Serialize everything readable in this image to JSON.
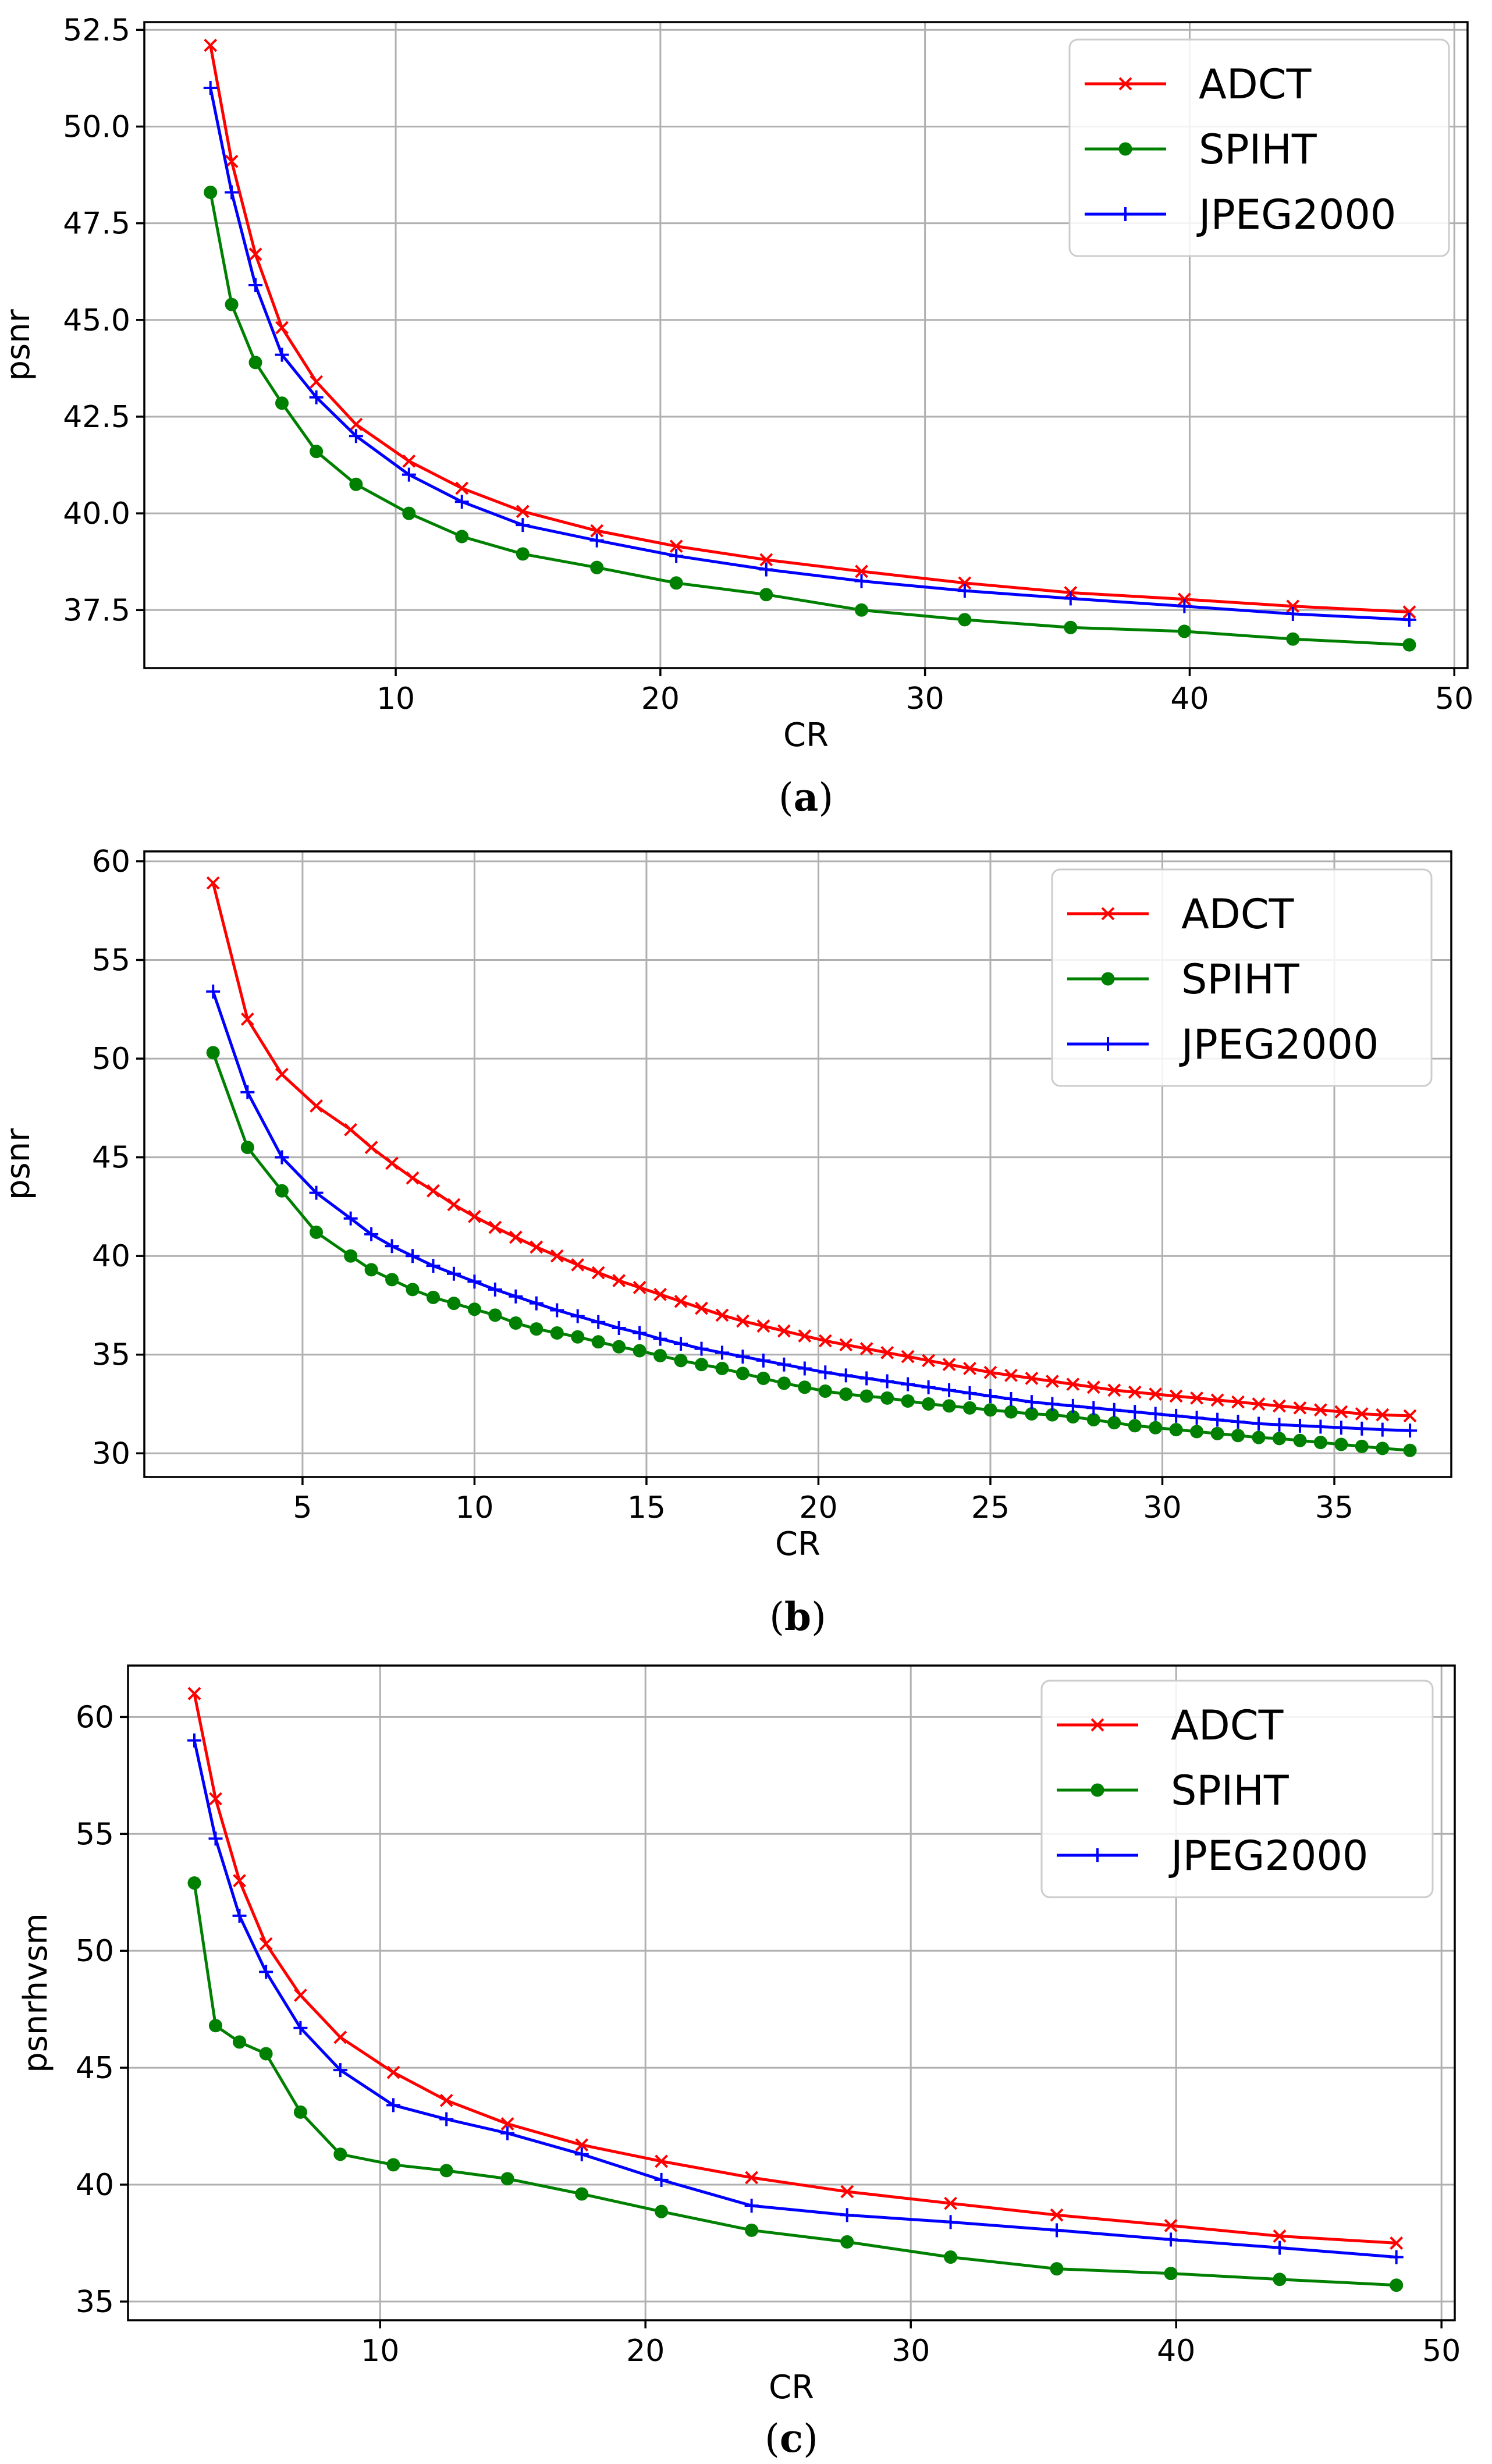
{
  "colors": {
    "ADCT": "#ff0000",
    "SPIHT": "#008000",
    "JPEG2000": "#0000ff"
  },
  "chart_data": [
    {
      "type": "line",
      "caption": "(a)",
      "caption_letter": "a",
      "xlabel": "CR",
      "ylabel": "psnr",
      "xlim": [
        0.5,
        50.5
      ],
      "ylim": [
        36.0,
        52.7
      ],
      "xticks": [
        10,
        20,
        30,
        40,
        50
      ],
      "yticks": [
        37.5,
        40.0,
        42.5,
        45.0,
        47.5,
        50.0,
        52.5
      ],
      "ytick_labels": [
        "37.5",
        "40.0",
        "42.5",
        "45.0",
        "47.5",
        "50.0",
        "52.5"
      ],
      "legend_position": "top-right",
      "series": [
        {
          "name": "ADCT",
          "marker": "x",
          "x": [
            3.0,
            3.8,
            4.7,
            5.7,
            7.0,
            8.5,
            10.5,
            12.5,
            14.8,
            17.6,
            20.6,
            24.0,
            27.6,
            31.5,
            35.5,
            39.8,
            43.9,
            48.3
          ],
          "y": [
            52.1,
            49.1,
            46.7,
            44.8,
            43.4,
            42.3,
            41.35,
            40.65,
            40.05,
            39.55,
            39.15,
            38.8,
            38.5,
            38.2,
            37.95,
            37.78,
            37.6,
            37.45
          ]
        },
        {
          "name": "SPIHT",
          "marker": "o",
          "x": [
            3.0,
            3.8,
            4.7,
            5.7,
            7.0,
            8.5,
            10.5,
            12.5,
            14.8,
            17.6,
            20.6,
            24.0,
            27.6,
            31.5,
            35.5,
            39.8,
            43.9,
            48.3
          ],
          "y": [
            48.3,
            45.4,
            43.9,
            42.85,
            41.6,
            40.75,
            40.0,
            39.4,
            38.95,
            38.6,
            38.2,
            37.9,
            37.5,
            37.25,
            37.05,
            36.95,
            36.75,
            36.6
          ]
        },
        {
          "name": "JPEG2000",
          "marker": "+",
          "x": [
            3.0,
            3.8,
            4.7,
            5.7,
            7.0,
            8.5,
            10.5,
            12.5,
            14.8,
            17.6,
            20.6,
            24.0,
            27.6,
            31.5,
            35.5,
            39.8,
            43.9,
            48.3
          ],
          "y": [
            51.0,
            48.3,
            45.9,
            44.1,
            43.0,
            42.0,
            41.0,
            40.3,
            39.7,
            39.3,
            38.9,
            38.55,
            38.25,
            38.0,
            37.8,
            37.6,
            37.4,
            37.25
          ]
        }
      ]
    },
    {
      "type": "line",
      "caption": "(b)",
      "caption_letter": "b",
      "xlabel": "CR",
      "ylabel": "psnr",
      "xlim": [
        0.4,
        38.4
      ],
      "ylim": [
        28.8,
        60.5
      ],
      "xticks": [
        5,
        10,
        15,
        20,
        25,
        30,
        35
      ],
      "yticks": [
        30,
        35,
        40,
        45,
        50,
        55,
        60
      ],
      "ytick_labels": [
        "30",
        "35",
        "40",
        "45",
        "50",
        "55",
        "60"
      ],
      "legend_position": "top-right",
      "series": [
        {
          "name": "ADCT",
          "marker": "x",
          "x": [
            2.4,
            3.4,
            4.4,
            5.4,
            6.4,
            7.0,
            7.6,
            8.2,
            8.8,
            9.4,
            10.0,
            10.6,
            11.2,
            11.8,
            12.4,
            13.0,
            13.6,
            14.2,
            14.8,
            15.4,
            16.0,
            16.6,
            17.2,
            17.8,
            18.4,
            19.0,
            19.6,
            20.2,
            20.8,
            21.4,
            22.0,
            22.6,
            23.2,
            23.8,
            24.4,
            25.0,
            25.6,
            26.2,
            26.8,
            27.4,
            28.0,
            28.6,
            29.2,
            29.8,
            30.4,
            31.0,
            31.6,
            32.2,
            32.8,
            33.4,
            34.0,
            34.6,
            35.2,
            35.8,
            36.4,
            37.2
          ],
          "y": [
            58.9,
            52.0,
            49.2,
            47.6,
            46.4,
            45.5,
            44.7,
            43.95,
            43.3,
            42.6,
            42.0,
            41.45,
            40.95,
            40.45,
            40.0,
            39.55,
            39.15,
            38.75,
            38.4,
            38.05,
            37.7,
            37.35,
            37.0,
            36.7,
            36.45,
            36.2,
            35.95,
            35.7,
            35.5,
            35.3,
            35.1,
            34.9,
            34.7,
            34.5,
            34.3,
            34.1,
            33.95,
            33.8,
            33.65,
            33.5,
            33.35,
            33.2,
            33.1,
            33.0,
            32.9,
            32.8,
            32.7,
            32.6,
            32.5,
            32.4,
            32.3,
            32.2,
            32.1,
            32.0,
            31.95,
            31.9
          ]
        },
        {
          "name": "SPIHT",
          "marker": "o",
          "x": [
            2.4,
            3.4,
            4.4,
            5.4,
            6.4,
            7.0,
            7.6,
            8.2,
            8.8,
            9.4,
            10.0,
            10.6,
            11.2,
            11.8,
            12.4,
            13.0,
            13.6,
            14.2,
            14.8,
            15.4,
            16.0,
            16.6,
            17.2,
            17.8,
            18.4,
            19.0,
            19.6,
            20.2,
            20.8,
            21.4,
            22.0,
            22.6,
            23.2,
            23.8,
            24.4,
            25.0,
            25.6,
            26.2,
            26.8,
            27.4,
            28.0,
            28.6,
            29.2,
            29.8,
            30.4,
            31.0,
            31.6,
            32.2,
            32.8,
            33.4,
            34.0,
            34.6,
            35.2,
            35.8,
            36.4,
            37.2
          ],
          "y": [
            50.3,
            45.5,
            43.3,
            41.2,
            40.0,
            39.3,
            38.8,
            38.3,
            37.9,
            37.6,
            37.3,
            37.0,
            36.6,
            36.3,
            36.1,
            35.9,
            35.65,
            35.4,
            35.2,
            34.95,
            34.7,
            34.5,
            34.3,
            34.05,
            33.8,
            33.55,
            33.35,
            33.15,
            33.0,
            32.9,
            32.8,
            32.65,
            32.5,
            32.4,
            32.3,
            32.2,
            32.1,
            32.0,
            31.95,
            31.85,
            31.7,
            31.55,
            31.4,
            31.3,
            31.2,
            31.1,
            31.0,
            30.9,
            30.8,
            30.75,
            30.65,
            30.55,
            30.45,
            30.35,
            30.25,
            30.15
          ]
        },
        {
          "name": "JPEG2000",
          "marker": "+",
          "x": [
            2.4,
            3.4,
            4.4,
            5.4,
            6.4,
            7.0,
            7.6,
            8.2,
            8.8,
            9.4,
            10.0,
            10.6,
            11.2,
            11.8,
            12.4,
            13.0,
            13.6,
            14.2,
            14.8,
            15.4,
            16.0,
            16.6,
            17.2,
            17.8,
            18.4,
            19.0,
            19.6,
            20.2,
            20.8,
            21.4,
            22.0,
            22.6,
            23.2,
            23.8,
            24.4,
            25.0,
            25.6,
            26.2,
            26.8,
            27.4,
            28.0,
            28.6,
            29.2,
            29.8,
            30.4,
            31.0,
            31.6,
            32.2,
            32.8,
            33.4,
            34.0,
            34.6,
            35.2,
            35.8,
            36.4,
            37.2
          ],
          "y": [
            53.4,
            48.3,
            45.0,
            43.2,
            41.9,
            41.1,
            40.5,
            40.0,
            39.5,
            39.1,
            38.7,
            38.3,
            37.95,
            37.6,
            37.25,
            36.95,
            36.65,
            36.35,
            36.1,
            35.8,
            35.55,
            35.3,
            35.1,
            34.9,
            34.7,
            34.5,
            34.3,
            34.1,
            33.95,
            33.8,
            33.65,
            33.5,
            33.35,
            33.2,
            33.05,
            32.9,
            32.75,
            32.6,
            32.5,
            32.4,
            32.3,
            32.2,
            32.1,
            32.0,
            31.9,
            31.8,
            31.7,
            31.6,
            31.5,
            31.45,
            31.4,
            31.35,
            31.3,
            31.25,
            31.2,
            31.15
          ]
        }
      ]
    },
    {
      "type": "line",
      "caption": "(c)",
      "caption_letter": "c",
      "xlabel": "CR",
      "ylabel": "psnrhvsm",
      "xlim": [
        0.5,
        50.5
      ],
      "ylim": [
        34.2,
        62.2
      ],
      "xticks": [
        10,
        20,
        30,
        40,
        50
      ],
      "yticks": [
        35,
        40,
        45,
        50,
        55,
        60
      ],
      "ytick_labels": [
        "35",
        "40",
        "45",
        "50",
        "55",
        "60"
      ],
      "legend_position": "top-right",
      "series": [
        {
          "name": "ADCT",
          "marker": "x",
          "x": [
            3.0,
            3.8,
            4.7,
            5.7,
            7.0,
            8.5,
            10.5,
            12.5,
            14.8,
            17.6,
            20.6,
            24.0,
            27.6,
            31.5,
            35.5,
            39.8,
            43.9,
            48.3
          ],
          "y": [
            61.0,
            56.5,
            53.0,
            50.3,
            48.1,
            46.3,
            44.8,
            43.6,
            42.6,
            41.7,
            41.0,
            40.3,
            39.7,
            39.2,
            38.7,
            38.25,
            37.8,
            37.5
          ]
        },
        {
          "name": "SPIHT",
          "marker": "o",
          "x": [
            3.0,
            3.8,
            4.7,
            5.7,
            7.0,
            8.5,
            10.5,
            12.5,
            14.8,
            17.6,
            20.6,
            24.0,
            27.6,
            31.5,
            35.5,
            39.8,
            43.9,
            48.3
          ],
          "y": [
            52.9,
            46.8,
            46.1,
            45.6,
            43.1,
            41.3,
            40.85,
            40.6,
            40.25,
            39.6,
            38.85,
            38.05,
            37.55,
            36.9,
            36.4,
            36.2,
            35.95,
            35.7
          ]
        },
        {
          "name": "JPEG2000",
          "marker": "+",
          "x": [
            3.0,
            3.8,
            4.7,
            5.7,
            7.0,
            8.5,
            10.5,
            12.5,
            14.8,
            17.6,
            20.6,
            24.0,
            27.6,
            31.5,
            35.5,
            39.8,
            43.9,
            48.3
          ],
          "y": [
            59.0,
            54.8,
            51.5,
            49.1,
            46.7,
            44.9,
            43.4,
            42.8,
            42.2,
            41.3,
            40.2,
            39.1,
            38.7,
            38.4,
            38.05,
            37.65,
            37.3,
            36.9
          ]
        }
      ]
    }
  ]
}
